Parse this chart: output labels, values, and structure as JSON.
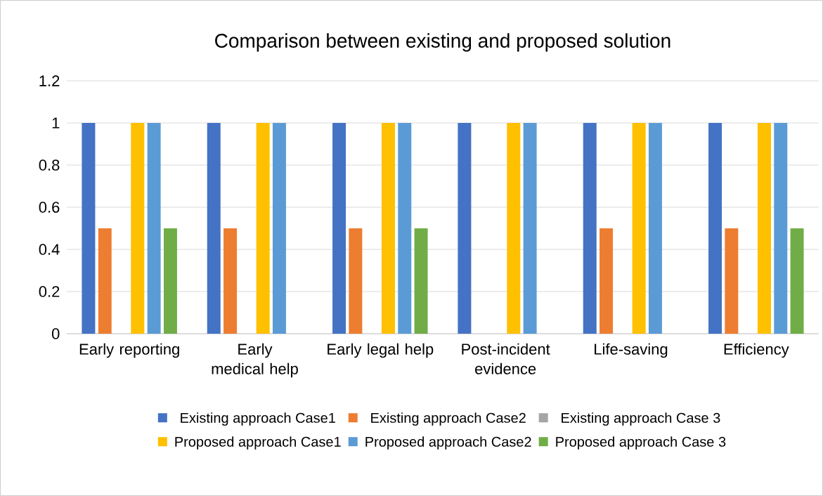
{
  "chart_data": {
    "type": "bar",
    "title": "Comparison between existing and proposed solution",
    "categories": [
      "Early reporting",
      "Early medical help",
      "Early legal help",
      "Post-incident evidence",
      "Life-saving",
      "Efficiency"
    ],
    "series": [
      {
        "name": "Existing approach Case1",
        "color": "#4472c4",
        "values": [
          1,
          1,
          1,
          1,
          1,
          1
        ]
      },
      {
        "name": "Existing approach Case2",
        "color": "#ed7d31",
        "values": [
          0.5,
          0.5,
          0.5,
          0,
          0.5,
          0.5
        ]
      },
      {
        "name": "Existing approach Case 3",
        "color": "#a5a5a5",
        "values": [
          0,
          0,
          0,
          0,
          0,
          0
        ]
      },
      {
        "name": "Proposed approach Case1",
        "color": "#ffc000",
        "values": [
          1,
          1,
          1,
          1,
          1,
          1
        ]
      },
      {
        "name": "Proposed approach Case2",
        "color": "#5b9bd5",
        "values": [
          1,
          1,
          1,
          1,
          1,
          1
        ]
      },
      {
        "name": "Proposed approach Case 3",
        "color": "#70ad47",
        "values": [
          0.5,
          0,
          0.5,
          0,
          0,
          0.5
        ]
      }
    ],
    "ylim": [
      0,
      1.2
    ],
    "yticks": [
      0,
      0.2,
      0.4,
      0.6,
      0.8,
      1,
      1.2
    ],
    "grid": "y",
    "legend": "bottom"
  }
}
